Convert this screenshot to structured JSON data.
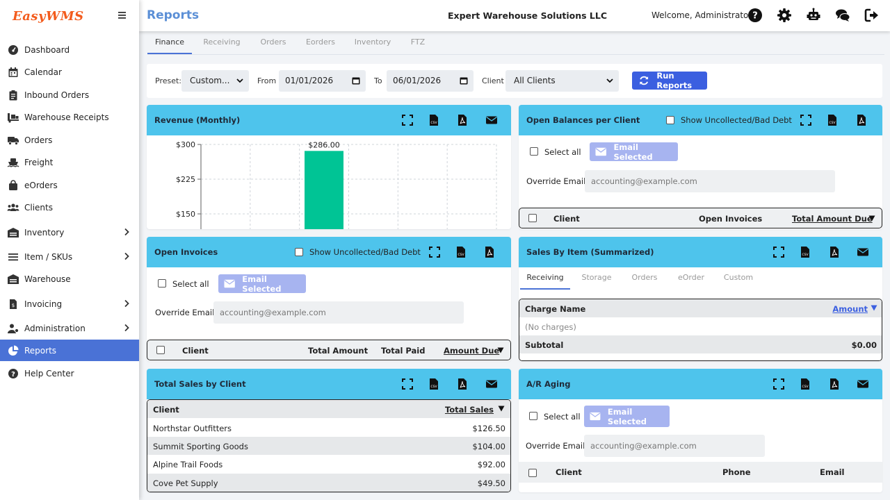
{
  "app": {
    "logo": "EasyWMS",
    "page_title": "Reports",
    "company": "Expert Warehouse Solutions LLC",
    "welcome": "Welcome, Administrator"
  },
  "sidebar": {
    "items": [
      {
        "label": "Dashboard",
        "icon": "dashboard-icon"
      },
      {
        "label": "Calendar",
        "icon": "calendar-icon"
      },
      {
        "label": "Inbound Orders",
        "icon": "clipboard-icon"
      },
      {
        "label": "Warehouse Receipts",
        "icon": "truck-loading-icon"
      },
      {
        "label": "Orders",
        "icon": "truck-icon"
      },
      {
        "label": "Freight",
        "icon": "ship-icon"
      },
      {
        "label": "eOrders",
        "icon": "shopping-bag-icon"
      },
      {
        "label": "Clients",
        "icon": "users-icon"
      },
      {
        "label": "Inventory",
        "icon": "warehouse-icon"
      },
      {
        "label": "Item / SKUs",
        "icon": "list-icon"
      },
      {
        "label": "Warehouse",
        "icon": "warehouse-icon"
      },
      {
        "label": "Invoicing",
        "icon": "invoice-icon"
      },
      {
        "label": "Administration",
        "icon": "user-gear-icon"
      },
      {
        "label": "Reports",
        "icon": "pie-chart-icon"
      },
      {
        "label": "Help Center",
        "icon": "question-circle-icon"
      }
    ]
  },
  "tabs": [
    "Finance",
    "Receiving",
    "Orders",
    "Eorders",
    "Inventory",
    "FTZ"
  ],
  "filters": {
    "preset_label": "Preset:",
    "preset_value": "Custom...",
    "from_label": "From",
    "from_value": "01/01/2026",
    "to_label": "To",
    "to_value": "06/01/2026",
    "client_label": "Client",
    "client_value": "All Clients",
    "run_label": "Run Reports"
  },
  "common": {
    "select_all": "Select all",
    "email_selected": "Email Selected",
    "override_email": "Override Email",
    "override_placeholder": "accounting@example.com",
    "show_uncollected": "Show Uncollected/Bad Debt"
  },
  "revenue": {
    "title": "Revenue (Monthly)",
    "bar_label": "$286.00"
  },
  "chart_data": {
    "type": "bar",
    "title": "Revenue (Monthly)",
    "y_ticks": [
      "$300",
      "$225",
      "$150"
    ],
    "values": [
      286
    ],
    "ylim": [
      150,
      300
    ],
    "bar_color": "#00c495",
    "grid": true
  },
  "open_balances": {
    "title": "Open Balances per Client",
    "columns": [
      "Client",
      "Open Invoices",
      "Total Amount Due"
    ]
  },
  "open_invoices": {
    "title": "Open Invoices",
    "columns": [
      "Client",
      "Total Amount",
      "Total Paid",
      "Amount Due"
    ]
  },
  "sales_by_item": {
    "title": "Sales By Item (Summarized)",
    "tabs": [
      "Receiving",
      "Storage",
      "Orders",
      "eOrder",
      "Custom"
    ],
    "col_charge": "Charge Name",
    "col_amount": "Amount",
    "empty": "(No charges)",
    "subtotal_label": "Subtotal",
    "subtotal_value": "$0.00"
  },
  "total_sales": {
    "title": "Total Sales by Client",
    "col_client": "Client",
    "col_total": "Total Sales",
    "rows": [
      {
        "client": "Northstar Outfitters",
        "total": "$126.50"
      },
      {
        "client": "Summit Sporting Goods",
        "total": "$104.00"
      },
      {
        "client": "Alpine Trail Foods",
        "total": "$92.00"
      },
      {
        "client": "Cove Pet Supply",
        "total": "$49.50"
      }
    ]
  },
  "ar_aging": {
    "title": "A/R Aging",
    "columns": [
      "Client",
      "Phone",
      "Email"
    ]
  },
  "colors": {
    "accent": "#4a72d6",
    "card_header": "#4ec4ec",
    "run_button": "#3b5fe0",
    "email_button": "#a7b4f0",
    "bar": "#00c495",
    "logo": "#f35b1c"
  }
}
